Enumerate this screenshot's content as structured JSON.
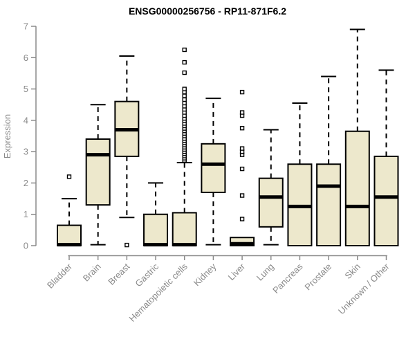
{
  "chart_data": {
    "type": "boxplot",
    "title": "ENSG00000256756 - RP11-871F6.2",
    "xlabel": "",
    "ylabel": "Expression",
    "ylim": [
      0,
      7
    ],
    "yticks": [
      0,
      1,
      2,
      3,
      4,
      5,
      6,
      7
    ],
    "grid": false,
    "legend": "none",
    "categories": [
      "Bladder",
      "Brain",
      "Breast",
      "Gastric",
      "Hematopoietic cells",
      "Kidney",
      "Liver",
      "Lung",
      "Pancreas",
      "Prostate",
      "Skin",
      "Unknown / Other"
    ],
    "boxes": [
      {
        "category": "Bladder",
        "whisker_low": 0,
        "q1": 0,
        "median": 0.03,
        "q3": 0.65,
        "whisker_high": 1.5,
        "outliers": [
          2.2
        ]
      },
      {
        "category": "Brain",
        "whisker_low": 0.03,
        "q1": 1.3,
        "median": 2.9,
        "q3": 3.4,
        "whisker_high": 4.5,
        "outliers": []
      },
      {
        "category": "Breast",
        "whisker_low": 0.9,
        "q1": 2.85,
        "median": 3.7,
        "q3": 4.6,
        "whisker_high": 6.05,
        "outliers": [
          0.02
        ]
      },
      {
        "category": "Gastric",
        "whisker_low": 0,
        "q1": 0,
        "median": 0.03,
        "q3": 1.0,
        "whisker_high": 2.0,
        "outliers": []
      },
      {
        "category": "Hematopoietic cells",
        "whisker_low": 0,
        "q1": 0,
        "median": 0.03,
        "q3": 1.05,
        "whisker_high": 2.65,
        "outliers": [
          2.72,
          2.79,
          2.86,
          2.93,
          3.0,
          3.07,
          3.14,
          3.21,
          3.28,
          3.35,
          3.42,
          3.5,
          3.58,
          3.66,
          3.74,
          3.82,
          3.9,
          3.98,
          4.06,
          4.15,
          4.25,
          4.35,
          4.45,
          4.55,
          4.66,
          4.78,
          4.9,
          5.0,
          5.52,
          5.85,
          6.25
        ]
      },
      {
        "category": "Kidney",
        "whisker_low": 0.03,
        "q1": 1.7,
        "median": 2.6,
        "q3": 3.25,
        "whisker_high": 4.7,
        "outliers": []
      },
      {
        "category": "Liver",
        "whisker_low": 0,
        "q1": 0,
        "median": 0.06,
        "q3": 0.26,
        "whisker_high": 0.26,
        "outliers": [
          0.85,
          1.6,
          2.45,
          2.9,
          3.0,
          3.1,
          3.75,
          4.15,
          4.25,
          4.9
        ]
      },
      {
        "category": "Lung",
        "whisker_low": 0.03,
        "q1": 0.6,
        "median": 1.55,
        "q3": 2.15,
        "whisker_high": 3.7,
        "outliers": []
      },
      {
        "category": "Pancreas",
        "whisker_low": 0,
        "q1": 0,
        "median": 1.25,
        "q3": 2.6,
        "whisker_high": 4.55,
        "outliers": []
      },
      {
        "category": "Prostate",
        "whisker_low": 0,
        "q1": 0,
        "median": 1.9,
        "q3": 2.6,
        "whisker_high": 5.4,
        "outliers": []
      },
      {
        "category": "Skin",
        "whisker_low": 0,
        "q1": 0,
        "median": 1.25,
        "q3": 3.65,
        "whisker_high": 6.9,
        "outliers": []
      },
      {
        "category": "Unknown / Other",
        "whisker_low": 0,
        "q1": 0,
        "median": 1.55,
        "q3": 2.85,
        "whisker_high": 5.6,
        "outliers": []
      }
    ],
    "colors": {
      "box_fill": "#EDE8CC",
      "box_stroke": "#000000",
      "median": "#000000",
      "whisker": "#000000",
      "outlier_stroke": "#000000",
      "outlier_fill": "#ffffff",
      "axis": "#8A8A8A",
      "tick_label": "#8A8A8A",
      "title": "#000000"
    }
  }
}
